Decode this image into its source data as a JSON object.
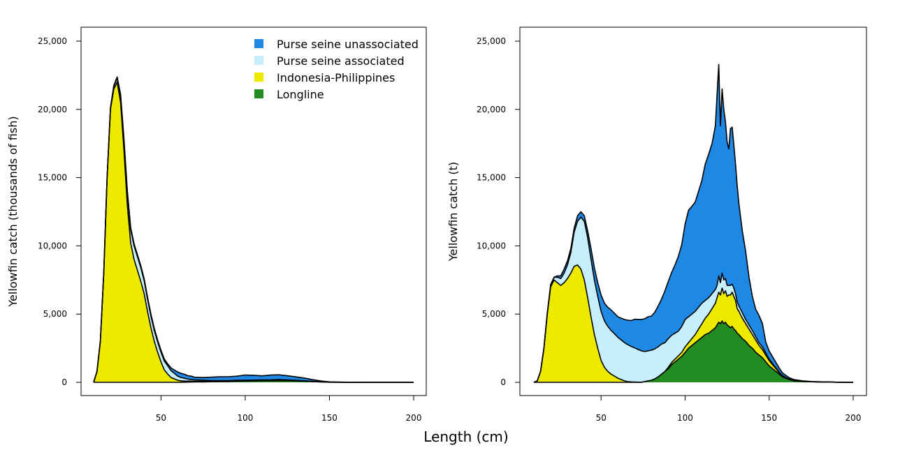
{
  "figure": {
    "xlabel": "Length (cm)"
  },
  "legend": {
    "entries": [
      {
        "label": "Purse seine unassociated",
        "color": "#1E88E5"
      },
      {
        "label": "Purse seine associated",
        "color": "#C6EEFB"
      },
      {
        "label": "Indonesia-Philippines",
        "color": "#EDEA00"
      },
      {
        "label": "Longline",
        "color": "#228B22"
      }
    ]
  },
  "chart_data": [
    {
      "type": "area",
      "stacked": true,
      "ylabel": "Yellowfin catch (thousands of fish)",
      "xlim": [
        10,
        200
      ],
      "ylim": [
        0,
        25000
      ],
      "x_ticks": [
        50,
        100,
        150,
        200
      ],
      "y_ticks": [
        0,
        5000,
        10000,
        15000,
        20000,
        25000
      ],
      "y_tick_labels": [
        "0",
        "5,000",
        "10,000",
        "15,000",
        "20,000",
        "25,000"
      ],
      "legend_position": "top-right",
      "grid": false,
      "x": [
        10,
        12,
        14,
        16,
        18,
        20,
        22,
        24,
        26,
        28,
        30,
        32,
        34,
        36,
        38,
        40,
        42,
        44,
        46,
        48,
        50,
        52,
        54,
        56,
        58,
        60,
        62,
        64,
        66,
        68,
        70,
        75,
        80,
        85,
        90,
        95,
        100,
        105,
        110,
        115,
        120,
        125,
        130,
        135,
        140,
        145,
        150,
        160,
        170,
        180,
        190,
        200
      ],
      "series": [
        {
          "name": "Longline",
          "color": "#228B22",
          "values": [
            0,
            0,
            0,
            0,
            0,
            0,
            0,
            0,
            0,
            0,
            0,
            0,
            0,
            0,
            0,
            0,
            0,
            0,
            0,
            0,
            0,
            0,
            0,
            0,
            0,
            0,
            5,
            10,
            15,
            20,
            25,
            30,
            40,
            50,
            60,
            80,
            90,
            100,
            110,
            120,
            130,
            120,
            100,
            80,
            50,
            25,
            10,
            5,
            2,
            1,
            0,
            0
          ]
        },
        {
          "name": "Indonesia-Philippines",
          "color": "#EDEA00",
          "values": [
            0,
            800,
            3000,
            8000,
            15000,
            20000,
            21500,
            22000,
            20500,
            17000,
            13000,
            10200,
            9000,
            8200,
            7400,
            6500,
            5200,
            4000,
            3000,
            2200,
            1500,
            900,
            600,
            350,
            250,
            150,
            100,
            80,
            70,
            60,
            50,
            40,
            30,
            25,
            20,
            20,
            15,
            15,
            15,
            10,
            10,
            10,
            10,
            5,
            5,
            5,
            0,
            0,
            0,
            0,
            0,
            0
          ]
        },
        {
          "name": "Purse seine associated",
          "color": "#C6EEFB",
          "values": [
            0,
            0,
            0,
            20,
            50,
            100,
            200,
            300,
            500,
            700,
            900,
            1000,
            1000,
            1000,
            1000,
            950,
            900,
            850,
            800,
            750,
            700,
            650,
            600,
            500,
            400,
            300,
            250,
            200,
            150,
            120,
            100,
            80,
            60,
            50,
            50,
            50,
            50,
            50,
            50,
            50,
            60,
            50,
            40,
            30,
            20,
            10,
            5,
            2,
            0,
            0,
            0,
            0
          ]
        },
        {
          "name": "Purse seine unassociated",
          "color": "#1E88E5",
          "values": [
            0,
            0,
            0,
            5,
            10,
            30,
            50,
            80,
            100,
            120,
            150,
            150,
            150,
            150,
            150,
            150,
            150,
            150,
            150,
            150,
            150,
            150,
            150,
            200,
            250,
            300,
            300,
            300,
            250,
            250,
            200,
            200,
            250,
            280,
            280,
            300,
            380,
            350,
            300,
            350,
            350,
            300,
            250,
            200,
            120,
            60,
            20,
            5,
            0,
            0,
            0,
            0
          ]
        }
      ]
    },
    {
      "type": "area",
      "stacked": true,
      "ylabel": "Yellowfin catch (t)",
      "xlim": [
        10,
        200
      ],
      "ylim": [
        0,
        25000
      ],
      "x_ticks": [
        50,
        100,
        150,
        200
      ],
      "y_ticks": [
        0,
        5000,
        10000,
        15000,
        20000,
        25000
      ],
      "y_tick_labels": [
        "0",
        "5,000",
        "10,000",
        "15,000",
        "20,000",
        "25,000"
      ],
      "grid": false,
      "x": [
        10,
        12,
        14,
        16,
        18,
        20,
        22,
        24,
        26,
        28,
        30,
        32,
        34,
        36,
        38,
        40,
        42,
        44,
        46,
        48,
        50,
        52,
        54,
        56,
        58,
        60,
        62,
        64,
        66,
        68,
        70,
        72,
        74,
        76,
        78,
        80,
        82,
        84,
        86,
        88,
        90,
        92,
        94,
        96,
        98,
        100,
        102,
        104,
        106,
        108,
        110,
        112,
        114,
        116,
        118,
        119,
        120,
        121,
        122,
        123,
        124,
        125,
        126,
        127,
        128,
        129,
        130,
        131,
        132,
        134,
        136,
        138,
        140,
        142,
        144,
        146,
        148,
        150,
        152,
        154,
        156,
        158,
        160,
        162,
        165,
        170,
        175,
        180,
        185,
        190,
        195,
        200
      ],
      "series": [
        {
          "name": "Longline",
          "color": "#228B22",
          "values": [
            0,
            0,
            0,
            0,
            0,
            0,
            0,
            0,
            0,
            0,
            0,
            0,
            0,
            0,
            0,
            0,
            0,
            0,
            0,
            0,
            0,
            0,
            0,
            0,
            0,
            0,
            0,
            0,
            0,
            0,
            0,
            0,
            0,
            50,
            100,
            150,
            250,
            400,
            600,
            800,
            1000,
            1300,
            1500,
            1700,
            1900,
            2200,
            2500,
            2700,
            2900,
            3100,
            3300,
            3500,
            3600,
            3800,
            4000,
            4200,
            4400,
            4300,
            4500,
            4300,
            4400,
            4200,
            4100,
            4000,
            4100,
            3900,
            3800,
            3600,
            3500,
            3200,
            3000,
            2700,
            2500,
            2200,
            2000,
            1800,
            1500,
            1200,
            1000,
            800,
            600,
            400,
            300,
            200,
            100,
            60,
            40,
            30,
            20,
            10,
            5,
            0
          ]
        },
        {
          "name": "Indonesia-Philippines",
          "color": "#EDEA00",
          "values": [
            0,
            100,
            800,
            2500,
            5000,
            7000,
            7500,
            7300,
            7100,
            7300,
            7600,
            8000,
            8500,
            8600,
            8300,
            7500,
            6200,
            4800,
            3500,
            2500,
            1600,
            1100,
            800,
            600,
            450,
            300,
            200,
            100,
            50,
            30,
            20,
            10,
            5,
            5,
            5,
            5,
            5,
            5,
            5,
            5,
            100,
            150,
            200,
            250,
            300,
            400,
            400,
            500,
            600,
            800,
            1000,
            1200,
            1400,
            1600,
            1800,
            2000,
            2200,
            2100,
            2400,
            2200,
            2300,
            2100,
            2300,
            2400,
            2500,
            2400,
            2200,
            1800,
            1700,
            1500,
            1300,
            1200,
            1000,
            900,
            700,
            600,
            500,
            400,
            300,
            200,
            100,
            50,
            30,
            20,
            10,
            5,
            0,
            0,
            0,
            0,
            0,
            0
          ]
        },
        {
          "name": "Purse seine associated",
          "color": "#C6EEFB",
          "values": [
            0,
            0,
            0,
            0,
            50,
            150,
            200,
            400,
            500,
            700,
            1000,
            1500,
            2500,
            3200,
            3800,
            4300,
            4400,
            4200,
            4000,
            3800,
            3600,
            3400,
            3300,
            3200,
            3100,
            3000,
            2900,
            2800,
            2700,
            2600,
            2500,
            2400,
            2300,
            2200,
            2200,
            2200,
            2200,
            2200,
            2200,
            2100,
            2100,
            2000,
            1900,
            1800,
            1900,
            2000,
            1900,
            1800,
            1700,
            1600,
            1500,
            1300,
            1200,
            1100,
            1000,
            900,
            1200,
            900,
            1100,
            1000,
            900,
            800,
            700,
            700,
            600,
            600,
            500,
            500,
            400,
            400,
            300,
            300,
            300,
            250,
            200,
            200,
            150,
            100,
            80,
            60,
            40,
            30,
            20,
            10,
            5,
            0,
            0,
            0,
            0,
            0,
            0,
            0
          ]
        },
        {
          "name": "Purse seine unassociated",
          "color": "#1E88E5",
          "values": [
            0,
            0,
            0,
            0,
            0,
            0,
            0,
            100,
            200,
            300,
            300,
            300,
            300,
            400,
            400,
            400,
            500,
            800,
            900,
            1000,
            1200,
            1300,
            1400,
            1500,
            1500,
            1500,
            1600,
            1700,
            1800,
            1900,
            2100,
            2200,
            2300,
            2400,
            2500,
            2500,
            2700,
            3000,
            3300,
            3800,
            4200,
            4600,
            5000,
            5500,
            6000,
            7000,
            7800,
            7900,
            8000,
            8500,
            9000,
            10000,
            10500,
            11000,
            12000,
            14000,
            15500,
            11500,
            13500,
            12500,
            11500,
            10500,
            10000,
            11500,
            11500,
            10500,
            9500,
            8500,
            7500,
            6000,
            5000,
            3500,
            2500,
            2000,
            2000,
            1700,
            800,
            600,
            500,
            400,
            300,
            200,
            150,
            100,
            80,
            40,
            20,
            10,
            5,
            0,
            0,
            0
          ]
        }
      ]
    }
  ]
}
